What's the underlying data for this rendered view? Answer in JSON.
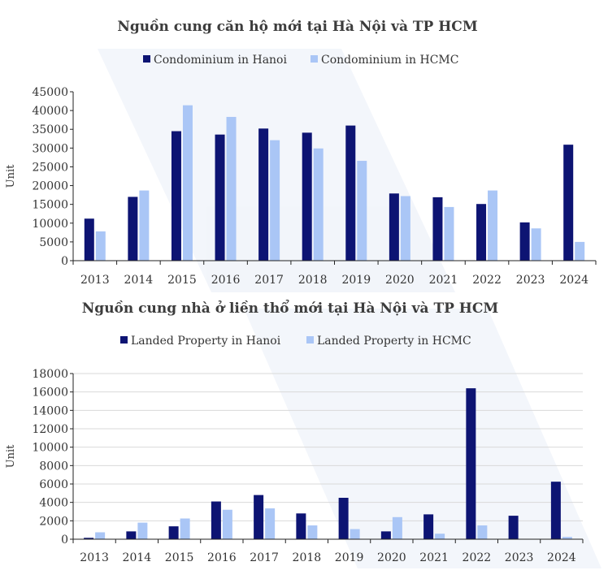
{
  "colors": {
    "hanoi": "#0d1473",
    "hcmc": "#aac6f6"
  },
  "chart_data": [
    {
      "type": "bar",
      "title": "Nguồn cung căn hộ mới tại Hà Nội và TP HCM",
      "xlabel": "",
      "ylabel": "Unit",
      "ylim": [
        0,
        45000
      ],
      "yticks": [
        0,
        5000,
        10000,
        15000,
        20000,
        25000,
        30000,
        35000,
        40000,
        45000
      ],
      "grid": false,
      "legend_position": "top-center",
      "categories": [
        "2013",
        "2014",
        "2015",
        "2016",
        "2017",
        "2018",
        "2019",
        "2020",
        "2021",
        "2022",
        "2023",
        "2024"
      ],
      "series": [
        {
          "name": "Condominium in Hanoi",
          "color": "#0d1473",
          "values": [
            11200,
            17000,
            34500,
            33600,
            35200,
            34100,
            36000,
            17900,
            16900,
            15100,
            10200,
            30900
          ]
        },
        {
          "name": "Condominium in HCMC",
          "color": "#aac6f6",
          "values": [
            7800,
            18700,
            41400,
            38300,
            32100,
            29900,
            26600,
            17200,
            14300,
            18700,
            8600,
            5000
          ]
        }
      ]
    },
    {
      "type": "bar",
      "title": "Nguồn cung nhà ở liền thổ mới tại Hà Nội và TP HCM",
      "xlabel": "",
      "ylabel": "Unit",
      "ylim": [
        0,
        18000
      ],
      "yticks": [
        0,
        2000,
        4000,
        6000,
        8000,
        10000,
        12000,
        14000,
        16000,
        18000
      ],
      "grid": true,
      "legend_position": "top-center",
      "categories": [
        "2013",
        "2014",
        "2015",
        "2016",
        "2017",
        "2018",
        "2019",
        "2020",
        "2021",
        "2022",
        "2023",
        "2024"
      ],
      "series": [
        {
          "name": "Landed Property in Hanoi",
          "color": "#0d1473",
          "values": [
            150,
            850,
            1400,
            4100,
            4800,
            2800,
            4500,
            850,
            2700,
            16400,
            2550,
            6250
          ]
        },
        {
          "name": "Landed Property in HCMC",
          "color": "#aac6f6",
          "values": [
            750,
            1800,
            2250,
            3200,
            3350,
            1500,
            1100,
            2400,
            600,
            1500,
            0,
            250
          ]
        }
      ]
    }
  ]
}
